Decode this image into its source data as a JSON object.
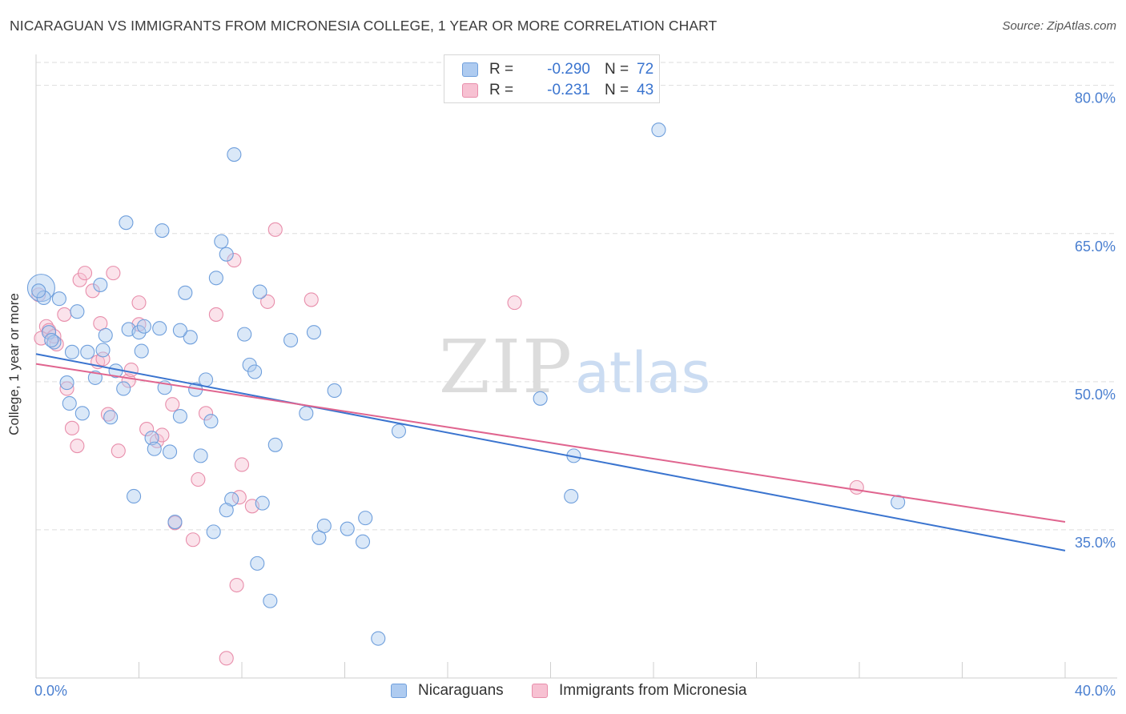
{
  "title": "NICARAGUAN VS IMMIGRANTS FROM MICRONESIA COLLEGE, 1 YEAR OR MORE CORRELATION CHART",
  "source": "Source: ZipAtlas.com",
  "watermark": {
    "zip": "ZIP",
    "atlas": "atlas"
  },
  "colors": {
    "blue_fill": "#aecbf0",
    "blue_stroke": "#6f9fdc",
    "blue_line": "#3a74cf",
    "pink_fill": "#f7c1d2",
    "pink_stroke": "#e88eab",
    "pink_line": "#e0658f",
    "tick_label": "#4a7fd0",
    "grid": "#dedede"
  },
  "stats": [
    {
      "r_label": "R =",
      "r_value": "-0.290",
      "n_label": "N =",
      "n_value": "72"
    },
    {
      "r_label": "R =",
      "r_value": "-0.231",
      "n_label": "N =",
      "n_value": "43"
    }
  ],
  "legend": [
    "Nicaraguans",
    "Immigrants from Micronesia"
  ],
  "chart_data": {
    "type": "scatter",
    "title": "NICARAGUAN VS IMMIGRANTS FROM MICRONESIA COLLEGE, 1 YEAR OR MORE CORRELATION CHART",
    "xlabel": "",
    "ylabel": "College, 1 year or more",
    "xlim": [
      0,
      40
    ],
    "ylim": [
      20,
      82
    ],
    "x_tick_labels": [
      "0.0%",
      "40.0%"
    ],
    "y_ticks": [
      35,
      50,
      65,
      80
    ],
    "y_tick_labels": [
      "35.0%",
      "50.0%",
      "65.0%",
      "80.0%"
    ],
    "grid": true,
    "series": [
      {
        "name": "Nicaraguans",
        "trend": {
          "x": [
            0,
            40
          ],
          "y": [
            52.8,
            32.9
          ]
        },
        "points": [
          [
            0.2,
            59.5
          ],
          [
            0.3,
            58.5
          ],
          [
            0.5,
            55.0
          ],
          [
            0.7,
            54.0
          ],
          [
            0.6,
            54.2
          ],
          [
            0.9,
            58.4
          ],
          [
            1.6,
            57.1
          ],
          [
            1.4,
            53.0
          ],
          [
            2.5,
            59.8
          ],
          [
            2.0,
            53.0
          ],
          [
            1.2,
            49.9
          ],
          [
            1.3,
            47.8
          ],
          [
            1.8,
            46.8
          ],
          [
            2.3,
            50.4
          ],
          [
            2.6,
            53.2
          ],
          [
            2.7,
            54.7
          ],
          [
            3.1,
            51.1
          ],
          [
            3.4,
            49.3
          ],
          [
            2.9,
            46.4
          ],
          [
            3.5,
            66.1
          ],
          [
            3.6,
            55.3
          ],
          [
            4.0,
            55.0
          ],
          [
            4.2,
            55.6
          ],
          [
            4.1,
            53.1
          ],
          [
            4.8,
            55.4
          ],
          [
            5.0,
            49.4
          ],
          [
            4.5,
            44.3
          ],
          [
            4.6,
            43.2
          ],
          [
            5.2,
            42.9
          ],
          [
            5.6,
            46.5
          ],
          [
            6.0,
            54.5
          ],
          [
            5.6,
            55.2
          ],
          [
            5.8,
            59.0
          ],
          [
            6.2,
            49.2
          ],
          [
            6.6,
            50.2
          ],
          [
            6.4,
            42.5
          ],
          [
            7.0,
            60.5
          ],
          [
            7.2,
            64.2
          ],
          [
            7.4,
            62.9
          ],
          [
            7.7,
            73.0
          ],
          [
            8.1,
            54.8
          ],
          [
            8.3,
            51.7
          ],
          [
            8.5,
            51.0
          ],
          [
            8.7,
            59.1
          ],
          [
            9.3,
            43.6
          ],
          [
            9.9,
            54.2
          ],
          [
            10.5,
            46.8
          ],
          [
            10.8,
            55.0
          ],
          [
            11.6,
            49.1
          ],
          [
            12.8,
            36.2
          ],
          [
            13.3,
            24.0
          ],
          [
            12.7,
            33.8
          ],
          [
            11.2,
            35.4
          ],
          [
            12.1,
            35.1
          ],
          [
            11.0,
            34.2
          ],
          [
            9.1,
            27.8
          ],
          [
            8.6,
            31.6
          ],
          [
            7.6,
            38.1
          ],
          [
            8.8,
            37.7
          ],
          [
            7.4,
            37.0
          ],
          [
            6.9,
            34.8
          ],
          [
            5.4,
            35.8
          ],
          [
            3.8,
            38.4
          ],
          [
            6.8,
            46.0
          ],
          [
            4.9,
            65.3
          ],
          [
            14.1,
            45.0
          ],
          [
            19.6,
            48.3
          ],
          [
            20.9,
            42.5
          ],
          [
            20.8,
            38.4
          ],
          [
            24.2,
            75.5
          ],
          [
            33.5,
            37.8
          ],
          [
            0.1,
            59.2
          ]
        ]
      },
      {
        "name": "Immigrants from Micronesia",
        "trend": {
          "x": [
            0,
            40
          ],
          "y": [
            51.8,
            35.8
          ]
        },
        "points": [
          [
            0.1,
            58.8
          ],
          [
            0.4,
            55.6
          ],
          [
            0.5,
            55.2
          ],
          [
            0.8,
            53.8
          ],
          [
            0.7,
            54.6
          ],
          [
            1.1,
            56.8
          ],
          [
            1.2,
            49.3
          ],
          [
            1.4,
            45.3
          ],
          [
            1.6,
            43.5
          ],
          [
            1.7,
            60.3
          ],
          [
            1.9,
            61.0
          ],
          [
            2.2,
            59.2
          ],
          [
            2.4,
            52.0
          ],
          [
            2.5,
            55.9
          ],
          [
            2.6,
            52.3
          ],
          [
            2.8,
            46.7
          ],
          [
            3.0,
            61.0
          ],
          [
            3.2,
            43.0
          ],
          [
            3.6,
            50.1
          ],
          [
            3.7,
            51.2
          ],
          [
            4.0,
            55.8
          ],
          [
            4.0,
            58.0
          ],
          [
            4.3,
            45.2
          ],
          [
            4.7,
            44.0
          ],
          [
            4.9,
            44.6
          ],
          [
            5.3,
            47.7
          ],
          [
            5.4,
            35.7
          ],
          [
            6.1,
            34.0
          ],
          [
            6.3,
            40.1
          ],
          [
            6.6,
            46.8
          ],
          [
            7.0,
            56.8
          ],
          [
            7.4,
            22.0
          ],
          [
            7.7,
            62.3
          ],
          [
            7.9,
            38.3
          ],
          [
            8.0,
            41.6
          ],
          [
            7.8,
            29.4
          ],
          [
            8.4,
            37.4
          ],
          [
            9.0,
            58.1
          ],
          [
            9.3,
            65.4
          ],
          [
            10.7,
            58.3
          ],
          [
            18.6,
            58.0
          ],
          [
            31.9,
            39.3
          ],
          [
            0.2,
            54.4
          ]
        ]
      }
    ]
  }
}
